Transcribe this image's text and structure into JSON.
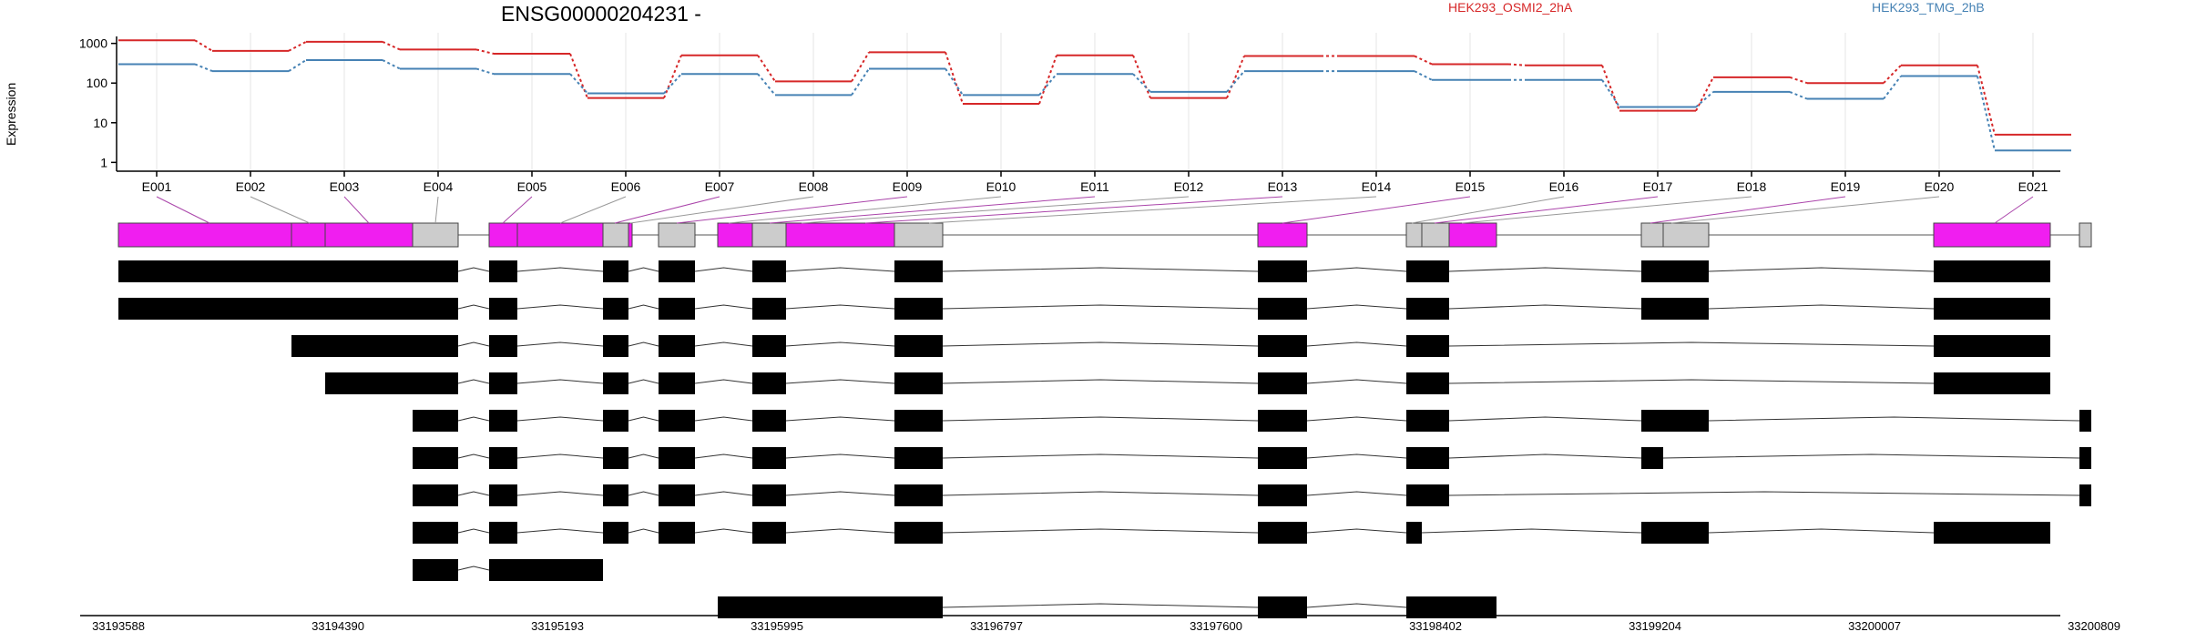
{
  "chart_data": {
    "type": "line",
    "title": "ENSG00000204231 -",
    "ylabel": "Expression",
    "yscale": "log",
    "ylim": [
      0.6,
      1500
    ],
    "yticks": [
      "1000",
      "100",
      "10",
      "1"
    ],
    "categories": [
      "E001",
      "E002",
      "E003",
      "E004",
      "E005",
      "E006",
      "E007",
      "E008",
      "E009",
      "E010",
      "E011",
      "E012",
      "E013",
      "E014",
      "E015",
      "E016",
      "E017",
      "E018",
      "E019",
      "E020",
      "E021"
    ],
    "series": [
      {
        "name": "HEK293_OSMI2_2hA",
        "color": "#d62728",
        "values": [
          1200,
          650,
          1100,
          700,
          550,
          42,
          500,
          110,
          600,
          30,
          500,
          42,
          480,
          480,
          300,
          280,
          20,
          140,
          100,
          280,
          5
        ]
      },
      {
        "name": "HEK293_TMG_2hB",
        "color": "#4682b4",
        "values": [
          300,
          200,
          380,
          230,
          170,
          55,
          170,
          50,
          230,
          50,
          170,
          60,
          200,
          200,
          120,
          120,
          25,
          60,
          40,
          150,
          2
        ]
      }
    ],
    "genome_axis_labels": [
      "33193588",
      "33194390",
      "33195193",
      "33195995",
      "33196797",
      "33197600",
      "33198402",
      "33199204",
      "33200007",
      "33200809"
    ]
  }
}
